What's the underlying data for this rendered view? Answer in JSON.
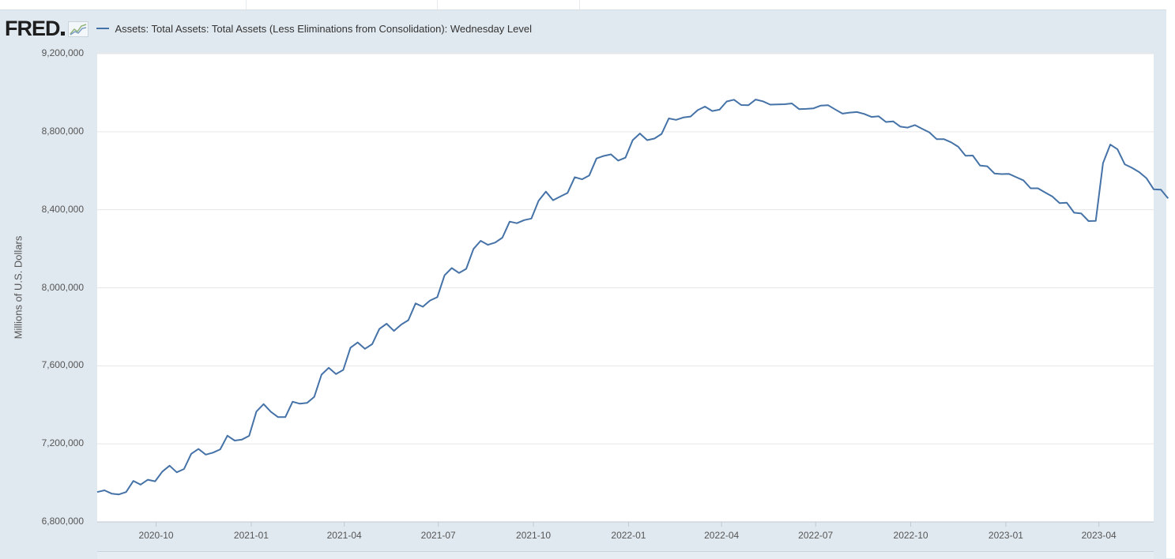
{
  "header": {
    "logo_text": "FRED",
    "legend_label": "Assets: Total Assets: Total Assets (Less Eliminations from Consolidation): Wednesday Level"
  },
  "colors": {
    "series": "#4572a7",
    "grid": "#e6e6e6",
    "background": "#e1e9f0"
  },
  "chart_data": {
    "type": "line",
    "title": "",
    "xlabel": "",
    "ylabel": "Millions of U.S. Dollars",
    "ylim": [
      6800000,
      9200000
    ],
    "xlim": [
      "2020-08-05",
      "2023-05-24"
    ],
    "y_ticks": [
      6800000,
      7200000,
      7600000,
      8000000,
      8400000,
      8800000,
      9200000
    ],
    "y_tick_labels": [
      "6,800,000",
      "7,200,000",
      "7,600,000",
      "8,000,000",
      "8,400,000",
      "8,800,000",
      "9,200,000"
    ],
    "x_tick_labels": [
      "2020-10",
      "2021-01",
      "2021-04",
      "2021-07",
      "2021-10",
      "2022-01",
      "2022-04",
      "2022-07",
      "2022-10",
      "2023-01",
      "2023-04"
    ],
    "x_tick_dates": [
      "2020-10-01",
      "2021-01-01",
      "2021-04-01",
      "2021-07-01",
      "2021-10-01",
      "2022-01-01",
      "2022-04-01",
      "2022-07-01",
      "2022-10-01",
      "2023-01-01",
      "2023-04-01"
    ],
    "grid": true,
    "legend_position": "top-left",
    "series": [
      {
        "name": "Assets: Total Assets: Total Assets (Less Eliminations from Consolidation): Wednesday Level",
        "start_date": "2020-08-05",
        "interval_days": 7,
        "values": [
          6953000,
          6962000,
          6945000,
          6941000,
          6953000,
          7010000,
          6991000,
          7016000,
          7008000,
          7058000,
          7088000,
          7054000,
          7071000,
          7149000,
          7174000,
          7145000,
          7155000,
          7172000,
          7242000,
          7217000,
          7222000,
          7241000,
          7366000,
          7404000,
          7364000,
          7337000,
          7337000,
          7416000,
          7406000,
          7410000,
          7441000,
          7555000,
          7590000,
          7558000,
          7579000,
          7693000,
          7720000,
          7687000,
          7711000,
          7789000,
          7816000,
          7779000,
          7811000,
          7834000,
          7920000,
          7903000,
          7935000,
          7952000,
          8064000,
          8101000,
          8076000,
          8097000,
          8199000,
          8241000,
          8220000,
          8232000,
          8257000,
          8339000,
          8331000,
          8347000,
          8355000,
          8446000,
          8493000,
          8449000,
          8468000,
          8486000,
          8567000,
          8556000,
          8576000,
          8663000,
          8676000,
          8684000,
          8652000,
          8667000,
          8757000,
          8791000,
          8757000,
          8765000,
          8789000,
          8868000,
          8861000,
          8873000,
          8878000,
          8911000,
          8929000,
          8906000,
          8913000,
          8955000,
          8964000,
          8937000,
          8936000,
          8965000,
          8956000,
          8939000,
          8940000,
          8941000,
          8945000,
          8916000,
          8917000,
          8920000,
          8934000,
          8936000,
          8914000,
          8893000,
          8898000,
          8901000,
          8891000,
          8876000,
          8879000,
          8850000,
          8853000,
          8826000,
          8821000,
          8834000,
          8815000,
          8797000,
          8762000,
          8762000,
          8746000,
          8723000,
          8677000,
          8678000,
          8627000,
          8623000,
          8586000,
          8583000,
          8584000,
          8567000,
          8551000,
          8510000,
          8510000,
          8489000,
          8468000,
          8434000,
          8436000,
          8385000,
          8381000,
          8342000,
          8343000,
          8639000,
          8734000,
          8710000,
          8633000,
          8615000,
          8593000,
          8562000,
          8505000,
          8503000,
          8458000
        ]
      }
    ]
  }
}
